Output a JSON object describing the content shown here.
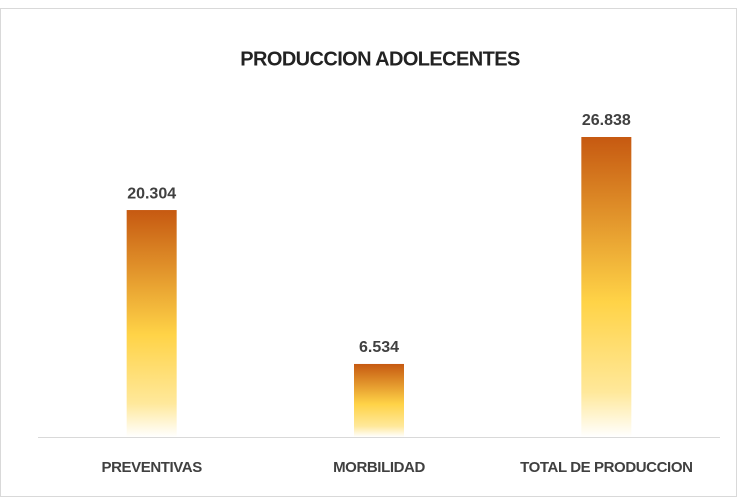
{
  "chart_data": {
    "type": "bar",
    "title": "PRODUCCION ADOLECENTES",
    "categories": [
      "PREVENTIVAS",
      "MORBILIDAD",
      "TOTAL DE PRODUCCION"
    ],
    "values": [
      20304,
      6534,
      26838
    ],
    "value_labels": [
      "20.304",
      "6.534",
      "26.838"
    ],
    "color": "#c65911"
  }
}
